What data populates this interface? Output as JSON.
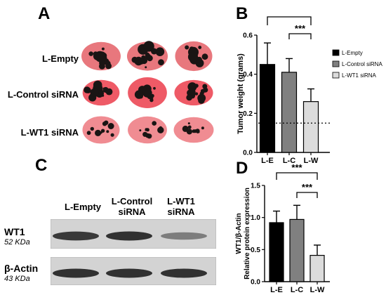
{
  "panels": {
    "a": "A",
    "b": "B",
    "c": "C",
    "d": "D"
  },
  "panel_a": {
    "rows": [
      {
        "label": "L-Empty",
        "color": "#e8777d"
      },
      {
        "label": "L-Control siRNA",
        "color": "#ee5a66"
      },
      {
        "label": "L-WT1 siRNA",
        "color": "#f08c92"
      }
    ]
  },
  "panel_c": {
    "lanes": [
      {
        "line1": "L-Empty",
        "line2": ""
      },
      {
        "line1": "L-Control",
        "line2": "siRNA"
      },
      {
        "line1": "L-WT1",
        "line2": "siRNA"
      }
    ],
    "bands": [
      {
        "name": "WT1",
        "kda": "52 KDa",
        "intensities": [
          0.95,
          1.0,
          0.5
        ]
      },
      {
        "name": "β-Actin",
        "kda": "43 KDa",
        "intensities": [
          1.0,
          1.0,
          1.0
        ]
      }
    ]
  },
  "chart_data": [
    {
      "type": "bar",
      "title": "",
      "categories": [
        "L-E",
        "L-C",
        "L-W"
      ],
      "values": [
        0.45,
        0.41,
        0.26
      ],
      "errors": [
        0.11,
        0.07,
        0.065
      ],
      "colors": [
        "#000000",
        "#808080",
        "#dcdcdc"
      ],
      "ylabel": "Tumor weight (grams)",
      "xlabel": "",
      "ylim": [
        0.0,
        0.6
      ],
      "yticks": [
        "0.0",
        "0.2",
        "0.4",
        "0.6"
      ],
      "ytick_values": [
        0.0,
        0.2,
        0.4,
        0.6
      ],
      "reference_line": 0.15,
      "legend": {
        "position": "right",
        "entries": [
          "L-Empty",
          "L-Control siRNA",
          "L-WT1 siRNA"
        ]
      },
      "significance": [
        {
          "pair": [
            "L-E",
            "L-W"
          ],
          "label": "***"
        },
        {
          "pair": [
            "L-C",
            "L-W"
          ],
          "label": "***"
        }
      ]
    },
    {
      "type": "bar",
      "title": "",
      "categories": [
        "L-E",
        "L-C",
        "L-W"
      ],
      "values": [
        0.92,
        0.97,
        0.41
      ],
      "errors": [
        0.18,
        0.22,
        0.16
      ],
      "colors": [
        "#000000",
        "#808080",
        "#dcdcdc"
      ],
      "ylabel_line1": "WT1/β-Actin",
      "ylabel_line2": "Relative protein expression",
      "xlabel": "",
      "ylim": [
        0.0,
        1.5
      ],
      "yticks": [
        "0.0",
        "0.5",
        "1.0",
        "1.5"
      ],
      "ytick_values": [
        0.0,
        0.5,
        1.0,
        1.5
      ],
      "significance": [
        {
          "pair": [
            "L-E",
            "L-W"
          ],
          "label": "***"
        },
        {
          "pair": [
            "L-C",
            "L-W"
          ],
          "label": "***"
        }
      ]
    }
  ]
}
